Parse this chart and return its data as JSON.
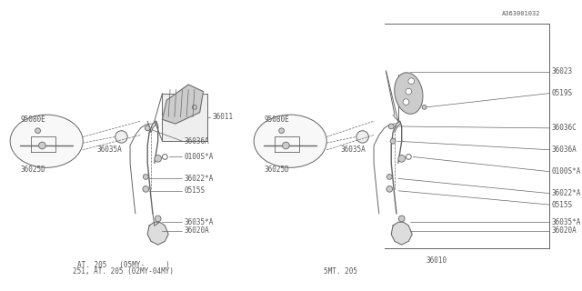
{
  "bg_color": "#ffffff",
  "line_color": "#666666",
  "text_color": "#555555",
  "fig_width": 6.4,
  "fig_height": 3.2,
  "dpi": 100,
  "left_title1": "251, AT. 205 (02MY-04MY)",
  "left_title2": "AT. 205   (05MY-     )",
  "right_title1": "5MT. 205",
  "part_ref": "36010",
  "diagram_ref": "A363001032",
  "font_size": 5.5
}
